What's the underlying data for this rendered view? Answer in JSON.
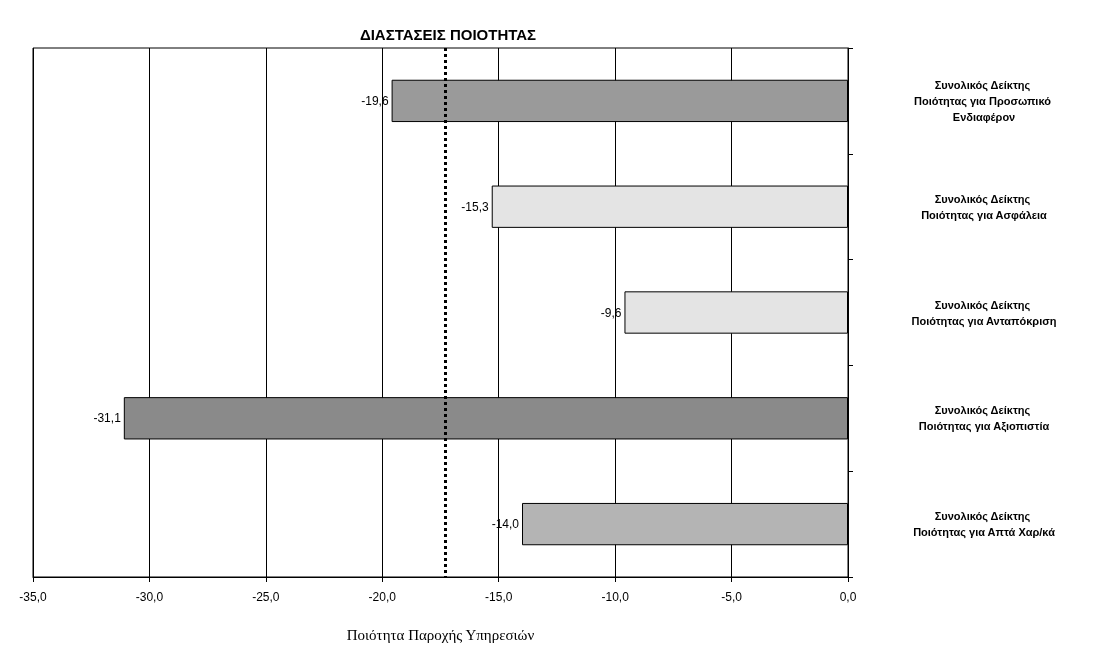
{
  "chart_data": {
    "type": "bar",
    "orientation": "horizontal",
    "title": "ΔΙΑΣΤΑΣΕΙΣ ΠΟΙΟΤΗΤΑΣ",
    "xlabel": "Ποιότητα Παροχής Υπηρεσιών",
    "categories": [
      "Συνολικός Δείκτης Ποιότητας για Προσωπικό Ενδιαφέρον",
      "Συνολικός Δείκτης Ποιότητας για Ασφάλεια",
      "Συνολικός Δείκτης Ποιότητας για Ανταπόκριση",
      "Συνολικός Δείκτης Ποιότητας για Αξιοπιστία",
      "Συνολικός Δείκτης Ποιότητας για Απτά Χαρ/κά"
    ],
    "values": [
      -19.6,
      -15.3,
      -9.6,
      -31.1,
      -14.0
    ],
    "value_labels": [
      "-19,6",
      "-15,3",
      "-9,6",
      "-31,1",
      "-14,0"
    ],
    "colors": [
      "#9a9a9a",
      "#e4e4e4",
      "#e4e4e4",
      "#8a8a8a",
      "#b4b4b4"
    ],
    "xlim": [
      -35,
      0
    ],
    "xticks": [
      {
        "value": -35,
        "label": "-35,0"
      },
      {
        "value": -30,
        "label": "-30,0"
      },
      {
        "value": -25,
        "label": "-25,0"
      },
      {
        "value": -20,
        "label": "-20,0"
      },
      {
        "value": -15,
        "label": "-15,0"
      },
      {
        "value": -10,
        "label": "-10,0"
      },
      {
        "value": -5,
        "label": "-5,0"
      },
      {
        "value": 0,
        "label": "0,0"
      }
    ],
    "grid": "x",
    "ref_lines": [
      {
        "axis": "x",
        "value": -17.3,
        "color": "#000000",
        "line_style": "dotted"
      }
    ]
  }
}
